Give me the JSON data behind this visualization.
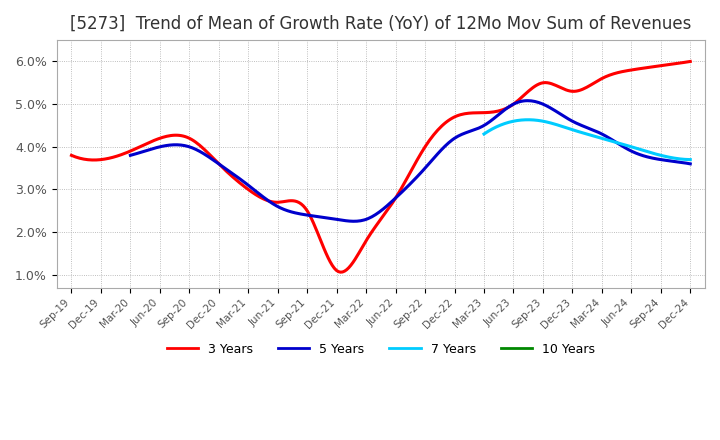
{
  "title": "[5273]  Trend of Mean of Growth Rate (YoY) of 12Mo Mov Sum of Revenues",
  "title_fontsize": 12,
  "title_color": "#333333",
  "background_color": "#ffffff",
  "plot_bg_color": "#ffffff",
  "ylim": [
    0.007,
    0.065
  ],
  "yticks": [
    0.01,
    0.02,
    0.03,
    0.04,
    0.05,
    0.06
  ],
  "ytick_labels": [
    "1.0%",
    "2.0%",
    "3.0%",
    "4.0%",
    "5.0%",
    "6.0%"
  ],
  "legend": [
    "3 Years",
    "5 Years",
    "7 Years",
    "10 Years"
  ],
  "legend_colors": [
    "#ff0000",
    "#0000cc",
    "#00ccff",
    "#008800"
  ],
  "x_labels": [
    "Sep-19",
    "Dec-19",
    "Mar-20",
    "Jun-20",
    "Sep-20",
    "Dec-20",
    "Mar-21",
    "Jun-21",
    "Sep-21",
    "Dec-21",
    "Mar-22",
    "Jun-22",
    "Sep-22",
    "Dec-22",
    "Mar-23",
    "Jun-23",
    "Sep-23",
    "Dec-23",
    "Mar-24",
    "Jun-24",
    "Sep-24",
    "Dec-24"
  ],
  "series_3y": [
    0.038,
    0.037,
    0.039,
    0.042,
    0.042,
    0.036,
    0.03,
    0.027,
    0.025,
    0.011,
    0.018,
    0.028,
    0.04,
    0.047,
    0.048,
    0.05,
    0.055,
    0.053,
    0.056,
    0.058,
    0.059,
    0.06
  ],
  "series_5y": [
    null,
    null,
    0.038,
    0.04,
    0.04,
    0.036,
    0.031,
    0.026,
    0.024,
    0.023,
    0.023,
    0.028,
    0.035,
    0.042,
    0.045,
    0.05,
    0.05,
    0.046,
    0.043,
    0.039,
    0.037,
    0.036
  ],
  "series_7y": [
    null,
    null,
    null,
    null,
    null,
    null,
    null,
    null,
    null,
    null,
    null,
    null,
    null,
    null,
    0.043,
    0.046,
    0.046,
    0.044,
    0.042,
    0.04,
    0.038,
    0.037
  ],
  "series_10y": [
    null,
    null,
    null,
    null,
    null,
    null,
    null,
    null,
    null,
    null,
    null,
    null,
    null,
    null,
    null,
    null,
    null,
    null,
    null,
    null,
    null,
    null
  ]
}
